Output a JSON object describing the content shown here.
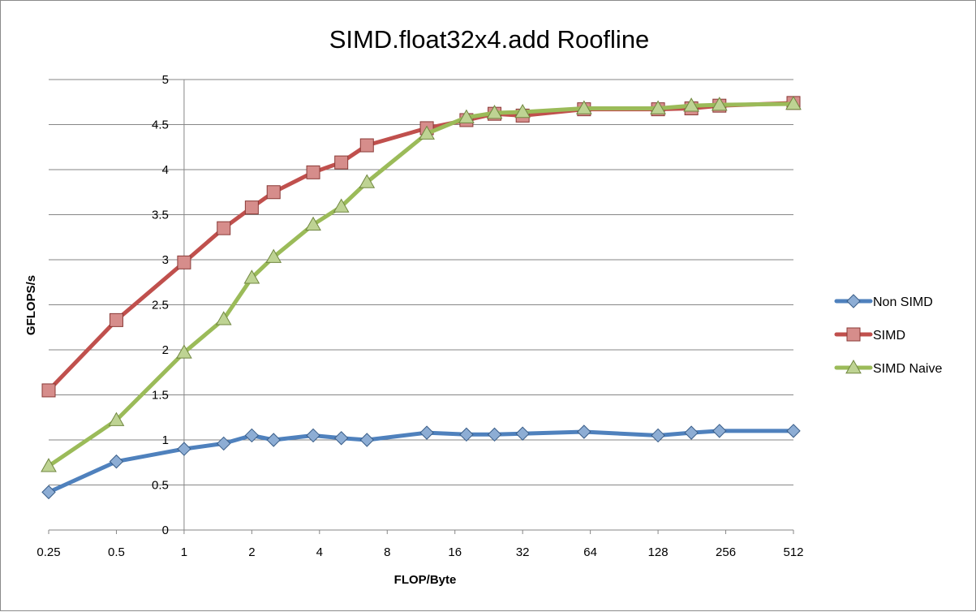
{
  "chart_data": {
    "type": "line",
    "title": "SIMD.float32x4.add Roofline",
    "xlabel": "FLOP/Byte",
    "ylabel": "GFLOPS/s",
    "x_scale": "log2",
    "xlim": [
      0.25,
      512
    ],
    "ylim": [
      0,
      5
    ],
    "x_ticks": [
      "0.25",
      "0.5",
      "1",
      "2",
      "4",
      "8",
      "16",
      "32",
      "64",
      "128",
      "256",
      "512"
    ],
    "y_ticks": [
      "0",
      "0.5",
      "1",
      "1.5",
      "2",
      "2.5",
      "3",
      "3.5",
      "4",
      "4.5",
      "5"
    ],
    "grid": "horizontal",
    "legend_position": "right",
    "series": [
      {
        "name": "Non SIMD",
        "color": "#4f81bd",
        "marker": "diamond",
        "x": [
          0.25,
          0.5,
          1,
          1.5,
          2,
          2.5,
          3.75,
          5,
          6.5,
          12,
          18,
          24,
          32,
          60,
          128,
          180,
          240,
          512
        ],
        "y": [
          0.42,
          0.76,
          0.9,
          0.96,
          1.05,
          1.0,
          1.05,
          1.02,
          1.0,
          1.08,
          1.06,
          1.06,
          1.07,
          1.09,
          1.05,
          1.08,
          1.1,
          1.1
        ]
      },
      {
        "name": "SIMD",
        "color": "#c0504d",
        "marker": "square",
        "x": [
          0.25,
          0.5,
          1,
          1.5,
          2,
          2.5,
          3.75,
          5,
          6.5,
          12,
          18,
          24,
          32,
          60,
          128,
          180,
          240,
          512
        ],
        "y": [
          1.55,
          2.33,
          2.97,
          3.35,
          3.58,
          3.75,
          3.97,
          4.08,
          4.27,
          4.46,
          4.55,
          4.62,
          4.6,
          4.67,
          4.67,
          4.68,
          4.71,
          4.74
        ]
      },
      {
        "name": "SIMD Naive",
        "color": "#9bbb59",
        "marker": "triangle",
        "x": [
          0.25,
          0.5,
          1,
          1.5,
          2,
          2.5,
          3.75,
          5,
          6.5,
          12,
          18,
          24,
          32,
          60,
          128,
          180,
          240,
          512
        ],
        "y": [
          0.71,
          1.22,
          1.97,
          2.34,
          2.8,
          3.03,
          3.39,
          3.59,
          3.86,
          4.4,
          4.58,
          4.63,
          4.64,
          4.68,
          4.68,
          4.71,
          4.72,
          4.73
        ]
      }
    ]
  }
}
